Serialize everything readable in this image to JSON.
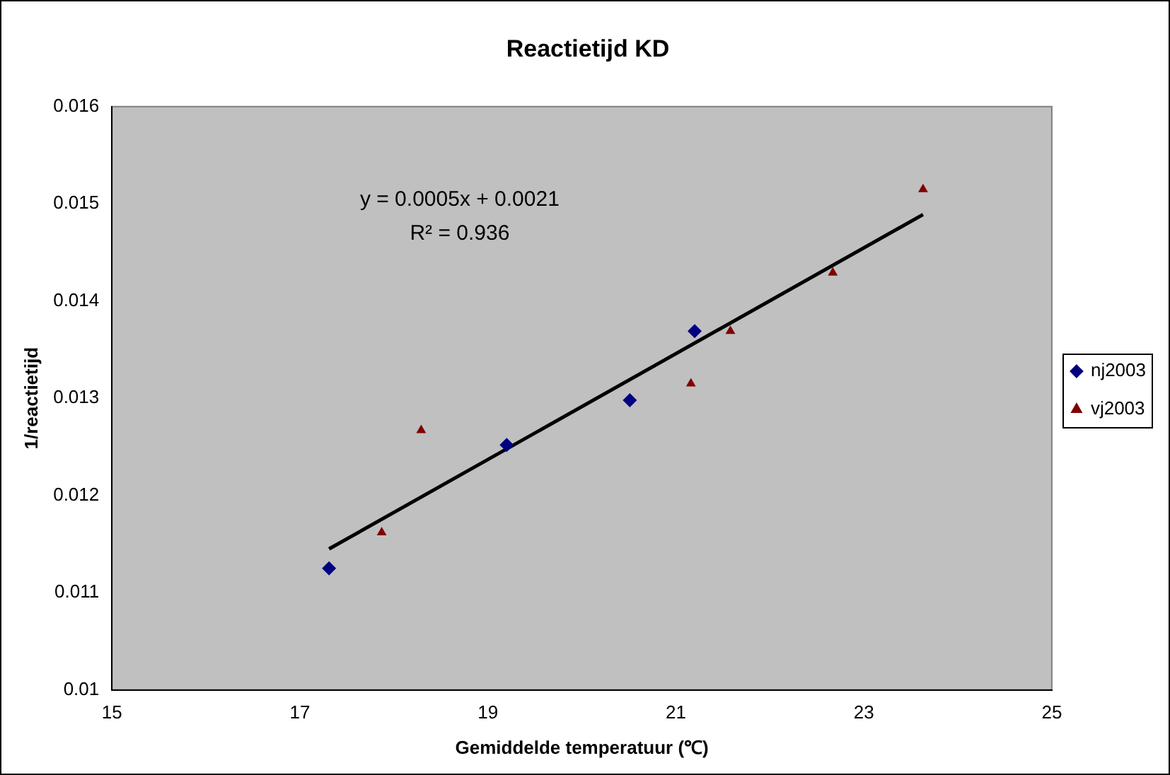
{
  "chart_data": {
    "type": "scatter",
    "title": "Reactietijd KD",
    "xlabel": "Gemiddelde temperatuur (℃)",
    "ylabel": "1/reactietijd",
    "xlim": [
      15,
      25
    ],
    "xticks": [
      15,
      17,
      19,
      21,
      23,
      25
    ],
    "ylim": [
      0.01,
      0.016
    ],
    "yticks": [
      0.01,
      0.011,
      0.012,
      0.013,
      0.014,
      0.015,
      0.016
    ],
    "grid": false,
    "legend": "right",
    "annotations": [
      "y = 0.0005x + 0.0021",
      "R² = 0.936"
    ],
    "series": [
      {
        "name": "nj2003",
        "color": "#000080",
        "marker": "diamond",
        "x": [
          17.31,
          19.2,
          20.51,
          21.2
        ],
        "values": [
          0.01125,
          0.01252,
          0.01298,
          0.01369
        ]
      },
      {
        "name": "vj2003",
        "color": "#800000",
        "marker": "triangle",
        "x": [
          17.87,
          18.29,
          21.16,
          21.58,
          22.67,
          23.63
        ],
        "values": [
          0.01162,
          0.01267,
          0.01315,
          0.01369,
          0.01429,
          0.01515
        ]
      },
      {
        "type": "line",
        "color": "#000000",
        "marker": "none",
        "x": [
          17.31,
          23.63
        ],
        "values": [
          0.01145,
          0.01489
        ]
      }
    ]
  }
}
